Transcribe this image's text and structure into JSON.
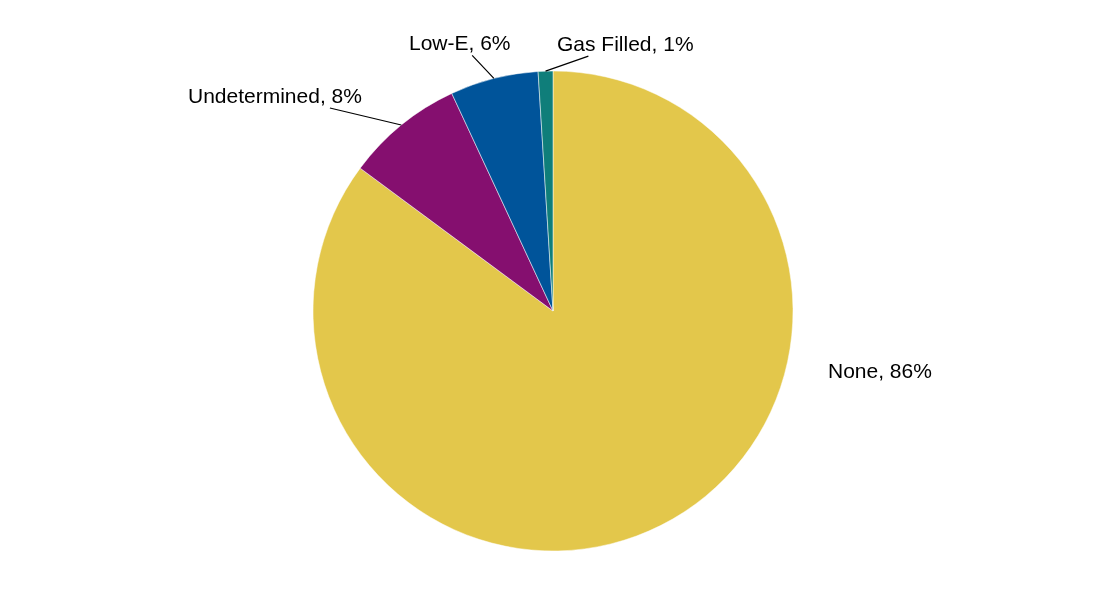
{
  "chart_data": {
    "type": "pie",
    "categories": [
      "None",
      "Undetermined",
      "Low-E",
      "Gas Filled"
    ],
    "values": [
      86,
      8,
      6,
      1
    ],
    "value_labels": [
      "86%",
      "8%",
      "6%",
      "1%"
    ],
    "colors": [
      "#e3c74b",
      "#850f6f",
      "#00549a",
      "#0f7e7a"
    ],
    "legend": false
  }
}
